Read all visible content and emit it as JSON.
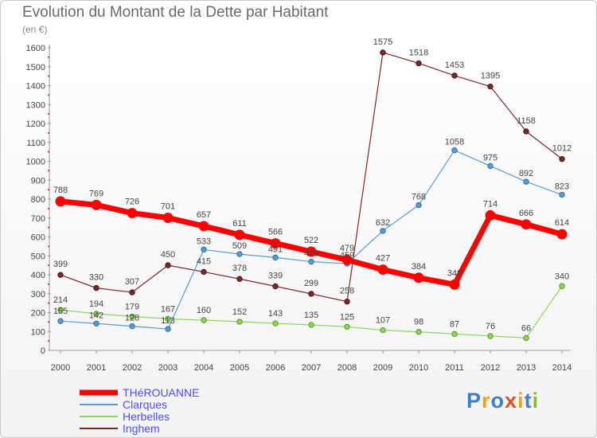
{
  "chart_data": {
    "type": "line",
    "title": "Evolution du Montant de la Dette par Habitant",
    "unit_label": "(en €)",
    "x": [
      "2000",
      "2001",
      "2002",
      "2003",
      "2004",
      "2005",
      "2006",
      "2007",
      "2008",
      "2009",
      "2010",
      "2011",
      "2012",
      "2013",
      "2014"
    ],
    "ylim": [
      0,
      1600
    ],
    "yticks": [
      0,
      100,
      200,
      300,
      400,
      500,
      600,
      700,
      800,
      900,
      1000,
      1100,
      1200,
      1300,
      1400,
      1500,
      1600
    ],
    "grid": false,
    "series": [
      {
        "name": "THéROUANNE",
        "color": "#ff0000",
        "values": [
          788,
          769,
          726,
          701,
          657,
          611,
          566,
          522,
          479,
          427,
          384,
          348,
          714,
          666,
          614
        ]
      },
      {
        "name": "Clarques",
        "color": "#5b9bd5",
        "values": [
          155,
          142,
          128,
          113,
          533,
          509,
          491,
          469,
          459,
          632,
          768,
          1058,
          975,
          892,
          823
        ]
      },
      {
        "name": "Herbelles",
        "color": "#8ed35a",
        "values": [
          214,
          194,
          179,
          167,
          160,
          152,
          143,
          135,
          125,
          107,
          98,
          87,
          76,
          66,
          340
        ]
      },
      {
        "name": "Inghem",
        "color": "#7a2a2a",
        "values": [
          399,
          330,
          307,
          450,
          415,
          378,
          339,
          299,
          258,
          1575,
          1518,
          1453,
          1395,
          1158,
          1012
        ]
      }
    ],
    "legend_position": "bottom-left"
  },
  "logo": {
    "letters": [
      "P",
      "r",
      "o",
      "x",
      "i",
      "t",
      "i"
    ],
    "colors": [
      "#3a7fd0",
      "#f0a020",
      "#3a7fd0",
      "#e05020",
      "#f0a020",
      "#3a7fd0",
      "#8ab830"
    ]
  }
}
